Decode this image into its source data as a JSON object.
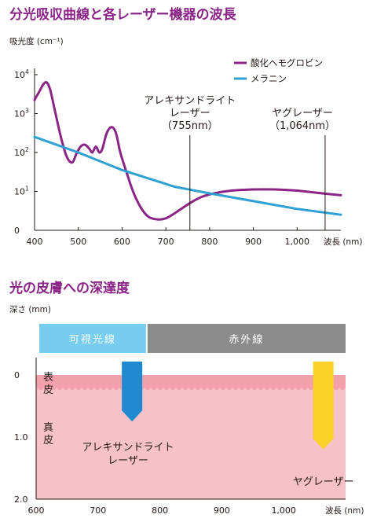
{
  "chart_data": [
    {
      "type": "line",
      "title": "分光吸収曲線と各レーザー機器の波長",
      "ylabel": "吸光度 (cm⁻¹)",
      "xlabel": "波長 (nm)",
      "x_ticks": [
        "400",
        "500",
        "600",
        "700",
        "800",
        "900",
        "1,000"
      ],
      "y_ticks": [
        {
          "base": "0",
          "exp": ""
        },
        {
          "base": "10",
          "exp": "1"
        },
        {
          "base": "10",
          "exp": "2"
        },
        {
          "base": "10",
          "exp": "3"
        },
        {
          "base": "10",
          "exp": "4"
        }
      ],
      "xlim": [
        400,
        1100
      ],
      "y_scale": "log (levels 0–4)",
      "ylim": [
        0,
        4
      ],
      "series": [
        {
          "name": "酸化ヘモグロビン",
          "color": "#8a2487",
          "points": [
            [
              400,
              3.35
            ],
            [
              410,
              3.55
            ],
            [
              420,
              3.75
            ],
            [
              428,
              3.8
            ],
            [
              436,
              3.6
            ],
            [
              446,
              3.1
            ],
            [
              458,
              2.5
            ],
            [
              470,
              2.0
            ],
            [
              478,
              1.8
            ],
            [
              487,
              1.75
            ],
            [
              495,
              1.95
            ],
            [
              505,
              2.15
            ],
            [
              515,
              2.2
            ],
            [
              525,
              2.1
            ],
            [
              532,
              2.0
            ],
            [
              540,
              2.15
            ],
            [
              548,
              2.0
            ],
            [
              555,
              2.1
            ],
            [
              565,
              2.5
            ],
            [
              576,
              2.65
            ],
            [
              586,
              2.5
            ],
            [
              596,
              2.0
            ],
            [
              610,
              1.5
            ],
            [
              625,
              1.0
            ],
            [
              642,
              0.6
            ],
            [
              660,
              0.35
            ],
            [
              680,
              0.28
            ],
            [
              698,
              0.3
            ],
            [
              715,
              0.4
            ],
            [
              735,
              0.55
            ],
            [
              755,
              0.7
            ],
            [
              780,
              0.85
            ],
            [
              810,
              0.95
            ],
            [
              850,
              1.02
            ],
            [
              900,
              1.05
            ],
            [
              950,
              1.05
            ],
            [
              1000,
              1.02
            ],
            [
              1050,
              0.96
            ],
            [
              1100,
              0.9
            ]
          ]
        },
        {
          "name": "メラニン",
          "color": "#2fa0d4",
          "points": [
            [
              400,
              2.4
            ],
            [
              500,
              2.0
            ],
            [
              600,
              1.55
            ],
            [
              720,
              1.12
            ],
            [
              800,
              0.95
            ],
            [
              900,
              0.75
            ],
            [
              1000,
              0.55
            ],
            [
              1100,
              0.4
            ]
          ]
        }
      ],
      "markers": [
        {
          "x": 755,
          "lines": [
            "アレキサンドライト",
            "レーザー",
            "（755nm）"
          ]
        },
        {
          "x": 1064,
          "lines": [
            "ヤグレーザー",
            "（1,064nm）"
          ]
        }
      ]
    },
    {
      "type": "depth",
      "title": "光の皮膚への深達度",
      "ylabel": "深さ (mm)",
      "xlabel": "波長 (nm)",
      "x_ticks": [
        "600",
        "700",
        "800",
        "900",
        "1,000"
      ],
      "y_ticks": [
        "0",
        "1.0",
        "2.0"
      ],
      "xlim": [
        600,
        1100
      ],
      "ylim": [
        0,
        2.0
      ],
      "bands": [
        {
          "label": "可視光線",
          "from": 600,
          "to": 780,
          "color": "#76cdf0"
        },
        {
          "label": "赤外線",
          "from": 780,
          "to": 1100,
          "color": "#8c8c8c"
        }
      ],
      "layers": [
        {
          "label": "表皮",
          "color": "#f2a1ab"
        },
        {
          "label": "真皮",
          "color": "#f7c1c8"
        }
      ],
      "lasers": [
        {
          "x": 755,
          "depth": 0.75,
          "color": "#1f8ad0",
          "lines": [
            "アレキサンドライト",
            "レーザー"
          ]
        },
        {
          "x": 1064,
          "depth": 1.2,
          "color": "#fbd12a",
          "lines": [
            "ヤグレーザー"
          ]
        }
      ]
    }
  ]
}
